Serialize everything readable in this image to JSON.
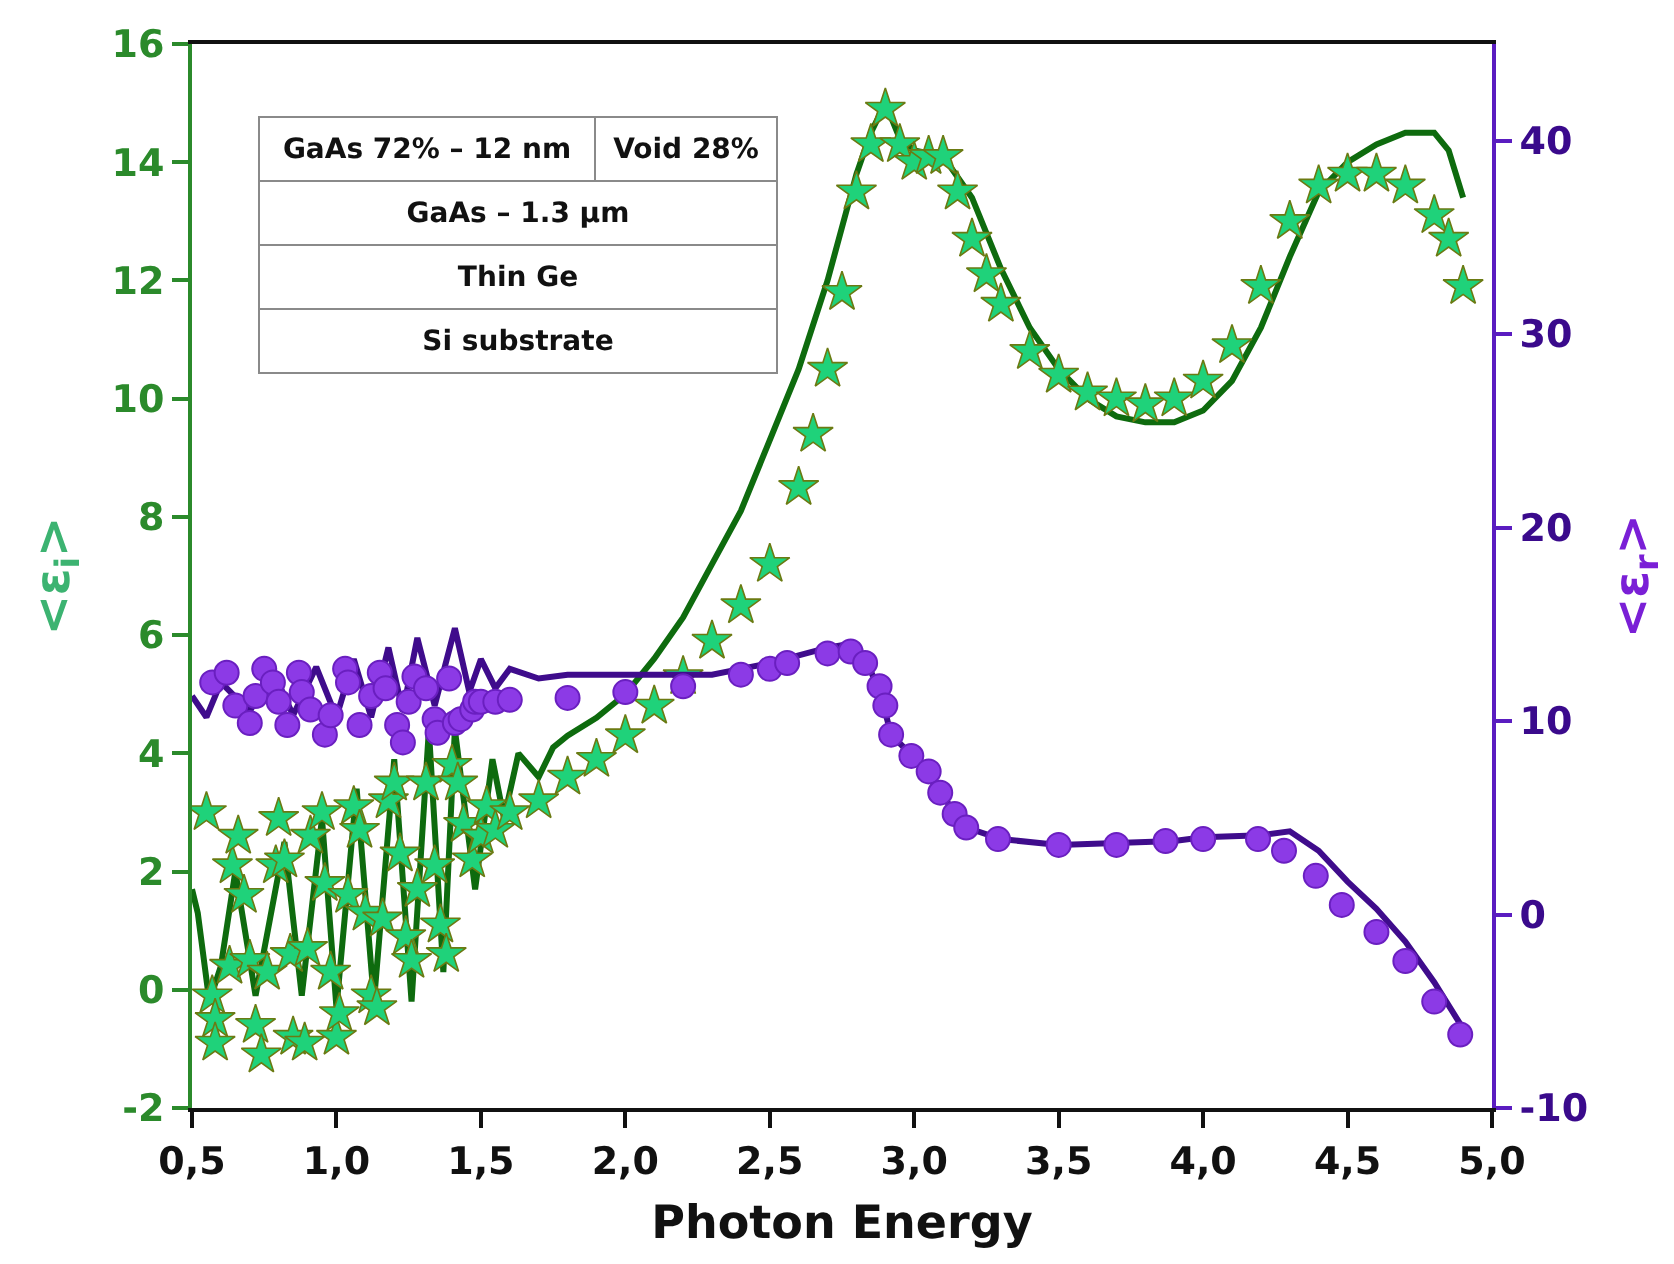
{
  "chart_data": {
    "type": "line",
    "xlabel": "Photon Energy",
    "ylabel": "<ε$_{i}$>",
    "y2label": "<ε$_{r}$>",
    "xlim": [
      0.5,
      5.0
    ],
    "xticks": [
      {
        "value": 0.5,
        "label": "0,5"
      },
      {
        "value": 1.0,
        "label": "1,0"
      },
      {
        "value": 1.5,
        "label": "1,5"
      },
      {
        "value": 2.0,
        "label": "2,0"
      },
      {
        "value": 2.5,
        "label": "2,5"
      },
      {
        "value": 3.0,
        "label": "3,0"
      },
      {
        "value": 3.5,
        "label": "3,5"
      },
      {
        "value": 4.0,
        "label": "4,0"
      },
      {
        "value": 4.5,
        "label": "4,5"
      },
      {
        "value": 5.0,
        "label": "5,0"
      }
    ],
    "ylim": [
      -2,
      16
    ],
    "yticks": [
      -2,
      0,
      2,
      4,
      6,
      8,
      10,
      12,
      14,
      16
    ],
    "y2lim": [
      -10,
      45
    ],
    "y2ticks": [
      -10,
      0,
      10,
      20,
      30,
      40
    ],
    "annotations": [
      "GaAs 72% – 12 nm",
      "Void 28%",
      "GaAs – 1.3 μm",
      "Thin Ge",
      "Si substrate"
    ],
    "series": [
      {
        "color": "#0e6b0e",
        "x": [
          0.5,
          0.52,
          0.56,
          0.6,
          0.65,
          0.72,
          0.77,
          0.82,
          0.88,
          0.95,
          1.0,
          1.07,
          1.13,
          1.2,
          1.26,
          1.32,
          1.37,
          1.41,
          1.48,
          1.54,
          1.58,
          1.63,
          1.7,
          1.75,
          1.8,
          1.9,
          2.0,
          2.1,
          2.2,
          2.3,
          2.4,
          2.5,
          2.6,
          2.7,
          2.8,
          2.85,
          2.9,
          2.95,
          3.0,
          3.1,
          3.2,
          3.3,
          3.4,
          3.5,
          3.6,
          3.7,
          3.8,
          3.9,
          4.0,
          4.1,
          4.2,
          4.3,
          4.4,
          4.5,
          4.6,
          4.7,
          4.8,
          4.85,
          4.9
        ],
        "values": [
          1.7,
          1.3,
          -0.2,
          0.4,
          2.0,
          -0.1,
          1.2,
          2.5,
          -0.1,
          2.9,
          -0.3,
          3.4,
          -0.2,
          3.9,
          -0.2,
          4.4,
          0.3,
          4.4,
          1.7,
          3.9,
          2.9,
          4.0,
          3.6,
          4.1,
          4.3,
          4.6,
          5.0,
          5.6,
          6.3,
          7.2,
          8.1,
          9.3,
          10.5,
          12.0,
          13.8,
          14.5,
          15.0,
          14.4,
          14.2,
          14.1,
          13.4,
          12.2,
          11.2,
          10.5,
          10.0,
          9.7,
          9.6,
          9.6,
          9.8,
          10.3,
          11.2,
          12.4,
          13.5,
          14.0,
          14.3,
          14.5,
          14.5,
          14.2,
          13.4
        ]
      },
      {
        "type": "scatter",
        "marker": "star",
        "color": "#1fd27a",
        "x": [
          0.55,
          0.57,
          0.58,
          0.58,
          0.63,
          0.64,
          0.66,
          0.68,
          0.7,
          0.72,
          0.74,
          0.76,
          0.79,
          0.8,
          0.82,
          0.84,
          0.85,
          0.89,
          0.9,
          0.91,
          0.95,
          0.96,
          0.98,
          1.0,
          1.01,
          1.04,
          1.06,
          1.08,
          1.1,
          1.12,
          1.14,
          1.16,
          1.18,
          1.2,
          1.22,
          1.24,
          1.26,
          1.28,
          1.31,
          1.34,
          1.36,
          1.38,
          1.4,
          1.42,
          1.44,
          1.47,
          1.5,
          1.52,
          1.55,
          1.6,
          1.7,
          1.8,
          1.9,
          2.0,
          2.1,
          2.2,
          2.3,
          2.4,
          2.5,
          2.6,
          2.65,
          2.7,
          2.75,
          2.8,
          2.85,
          2.9,
          2.95,
          3.0,
          3.05,
          3.1,
          3.15,
          3.2,
          3.25,
          3.3,
          3.4,
          3.5,
          3.6,
          3.7,
          3.8,
          3.9,
          4.0,
          4.1,
          4.2,
          4.3,
          4.4,
          4.5,
          4.6,
          4.7,
          4.8,
          4.85,
          4.9
        ],
        "values": [
          3.0,
          -0.1,
          -0.5,
          -0.9,
          0.4,
          2.1,
          2.6,
          1.6,
          0.5,
          -0.6,
          -1.1,
          0.3,
          2.1,
          2.9,
          2.2,
          0.6,
          -0.8,
          -0.9,
          0.7,
          2.6,
          3.0,
          1.8,
          0.3,
          -0.8,
          -0.4,
          1.6,
          3.1,
          2.7,
          1.3,
          -0.1,
          -0.3,
          1.2,
          3.2,
          3.5,
          2.3,
          0.9,
          0.5,
          1.7,
          3.5,
          2.1,
          1.1,
          0.6,
          3.8,
          3.5,
          2.8,
          2.2,
          2.6,
          3.1,
          2.7,
          3.0,
          3.2,
          3.6,
          3.9,
          4.3,
          4.8,
          5.3,
          5.9,
          6.5,
          7.2,
          8.5,
          9.4,
          10.5,
          11.8,
          13.5,
          14.3,
          14.9,
          14.3,
          14.0,
          14.1,
          14.1,
          13.5,
          12.7,
          12.1,
          11.6,
          10.8,
          10.4,
          10.1,
          10.0,
          9.9,
          10.0,
          10.3,
          10.9,
          11.9,
          13.0,
          13.6,
          13.8,
          13.8,
          13.6,
          13.1,
          12.7,
          11.9
        ]
      },
      {
        "axis": "y2",
        "color": "#3f0c8c",
        "x": [
          0.5,
          0.55,
          0.6,
          0.7,
          0.78,
          0.85,
          0.93,
          1.0,
          1.06,
          1.12,
          1.18,
          1.23,
          1.28,
          1.34,
          1.41,
          1.46,
          1.5,
          1.55,
          1.6,
          1.7,
          1.8,
          2.0,
          2.3,
          2.5,
          2.7,
          2.78,
          2.83,
          2.88,
          2.92,
          3.0,
          3.09,
          3.18,
          3.3,
          3.5,
          3.9,
          4.0,
          4.2,
          4.3,
          4.4,
          4.5,
          4.6,
          4.7,
          4.8,
          4.9
        ],
        "values": [
          11.3,
          10.2,
          12.0,
          10.5,
          12.6,
          10.3,
          12.8,
          10.2,
          13.2,
          10.2,
          13.8,
          10.5,
          14.3,
          10.8,
          14.8,
          11.5,
          13.2,
          11.7,
          12.7,
          12.2,
          12.4,
          12.4,
          12.4,
          13.0,
          13.8,
          14.0,
          13.2,
          11.6,
          9.3,
          8.1,
          6.3,
          4.5,
          3.9,
          3.6,
          3.8,
          4.0,
          4.1,
          4.3,
          3.3,
          1.7,
          0.3,
          -1.4,
          -3.5,
          -5.9
        ]
      },
      {
        "type": "scatter",
        "axis": "y2",
        "marker": "circle",
        "color": "#8c3ae6",
        "x": [
          0.57,
          0.62,
          0.65,
          0.7,
          0.72,
          0.75,
          0.78,
          0.8,
          0.83,
          0.87,
          0.88,
          0.91,
          0.96,
          0.98,
          1.03,
          1.04,
          1.08,
          1.12,
          1.15,
          1.17,
          1.21,
          1.23,
          1.25,
          1.27,
          1.31,
          1.34,
          1.35,
          1.39,
          1.41,
          1.43,
          1.47,
          1.48,
          1.5,
          1.55,
          1.6,
          1.8,
          2.0,
          2.2,
          2.4,
          2.5,
          2.56,
          2.7,
          2.78,
          2.83,
          2.88,
          2.9,
          2.92,
          2.99,
          3.05,
          3.09,
          3.14,
          3.18,
          3.29,
          3.5,
          3.7,
          3.87,
          4.0,
          4.19,
          4.28,
          4.39,
          4.48,
          4.6,
          4.7,
          4.8,
          4.89
        ],
        "values": [
          12.0,
          12.5,
          10.8,
          9.9,
          11.3,
          12.7,
          12.0,
          11.0,
          9.8,
          12.5,
          11.5,
          10.6,
          9.3,
          10.3,
          12.7,
          12.0,
          9.8,
          11.3,
          12.5,
          11.7,
          9.8,
          8.9,
          11.0,
          12.3,
          11.7,
          10.1,
          9.4,
          12.2,
          9.9,
          10.1,
          10.6,
          11.0,
          11.0,
          11.0,
          11.1,
          11.2,
          11.5,
          11.8,
          12.4,
          12.7,
          13.0,
          13.5,
          13.6,
          13.0,
          11.8,
          10.8,
          9.3,
          8.2,
          7.4,
          6.3,
          5.2,
          4.5,
          3.9,
          3.6,
          3.6,
          3.8,
          3.9,
          3.9,
          3.3,
          2.0,
          0.5,
          -0.9,
          -2.4,
          -4.5,
          -6.2
        ]
      }
    ]
  }
}
